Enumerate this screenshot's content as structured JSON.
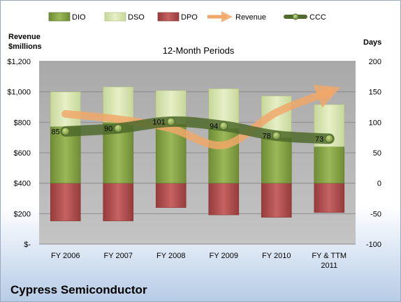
{
  "chart_data": {
    "type": "bar",
    "title": "12-Month Periods",
    "company": "Cypress Semiconductor",
    "left_axis_label": [
      "Revenue",
      "$millions"
    ],
    "right_axis_label": "Days",
    "categories": [
      "FY 2006",
      "FY 2007",
      "FY 2008",
      "FY 2009",
      "FY 2010",
      "FY & TTM 2011"
    ],
    "left_ticks": [
      "$-",
      "$200",
      "$400",
      "$600",
      "$800",
      "$1,000",
      "$1,200"
    ],
    "right_ticks": [
      "-100",
      "-50",
      "0",
      "50",
      "100",
      "150",
      "200"
    ],
    "left_range": [
      0,
      1200
    ],
    "right_range": [
      -100,
      200
    ],
    "series": [
      {
        "name": "DIO",
        "axis": "days",
        "values": [
          93,
          100,
          97,
          90,
          75,
          60
        ]
      },
      {
        "name": "DSO",
        "axis": "days",
        "values": [
          57,
          58,
          55,
          65,
          68,
          69
        ]
      },
      {
        "name": "DPO",
        "axis": "days",
        "values": [
          -62,
          -62,
          -40,
          -52,
          -56,
          -48
        ]
      },
      {
        "name": "Revenue",
        "axis": "revenue",
        "values": [
          855,
          820,
          760,
          650,
          865,
          1000
        ]
      },
      {
        "name": "CCC",
        "axis": "days",
        "values": [
          85,
          90,
          101,
          94,
          78,
          73
        ]
      }
    ],
    "ccc_labels": [
      "85",
      "90",
      "101",
      "94",
      "78",
      "73"
    ],
    "colors": {
      "DIO": "#8aa745",
      "DSO": "#d7e4ab",
      "DPO": "#b84c4c",
      "Revenue": "#f0a868",
      "CCC": "#5e7834",
      "plot_background": "#a8a8a8"
    }
  }
}
